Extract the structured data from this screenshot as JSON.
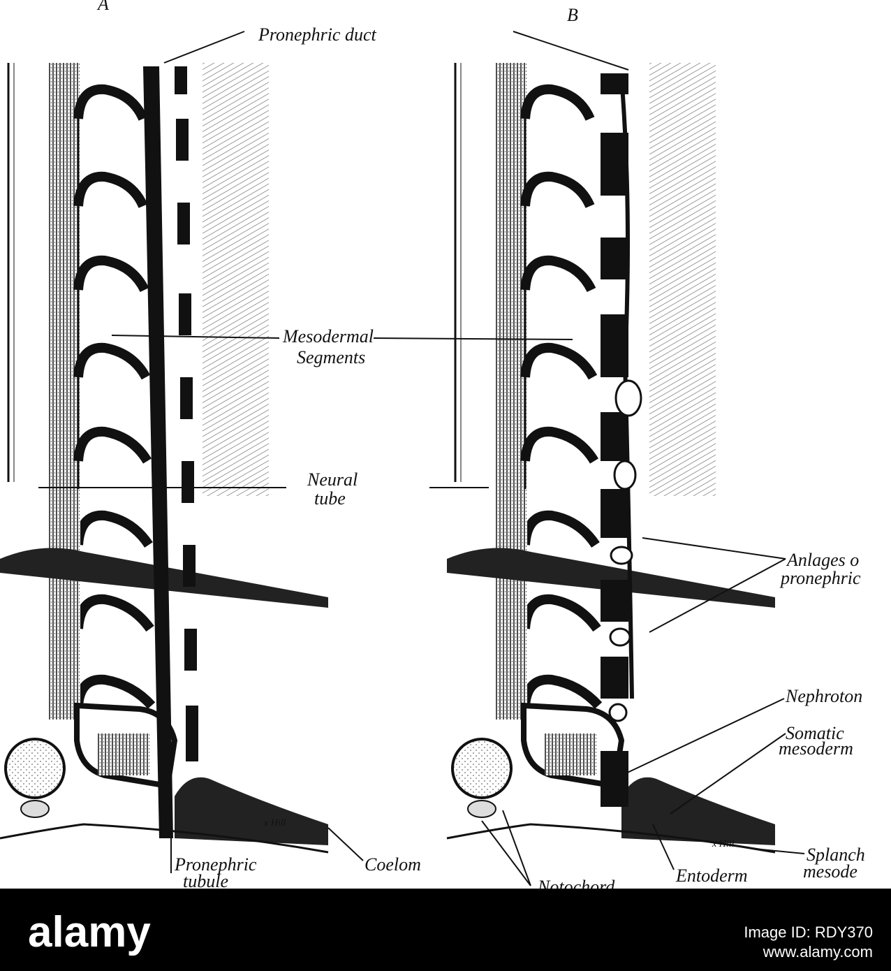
{
  "panels": [
    {
      "label": "A"
    },
    {
      "label": "B"
    }
  ],
  "labels": {
    "pronephric_duct": "Pronephric duct",
    "mesodermal_segments": [
      "Mesodermal",
      "Segments"
    ],
    "neural_tube": [
      "Neural",
      "tube"
    ],
    "anlages": [
      "Anlages o",
      "pronephric"
    ],
    "nephrotome": "Nephroton",
    "somatic_mesoderm": [
      "Somatic",
      "mesoderm"
    ],
    "splanchnic_mesoderm": [
      "Splanch",
      "mesode"
    ],
    "pronephric_tubule": [
      "Pronephric",
      "tubule"
    ],
    "coelom": "Coelom",
    "entoderm": "Entoderm",
    "notochord": "Notochord"
  },
  "signatures": [
    "x Hill",
    "x Hill"
  ],
  "footer": {
    "logo": "alamy",
    "image_id": "Image ID: RDY370",
    "url": "www.alamy.com"
  }
}
